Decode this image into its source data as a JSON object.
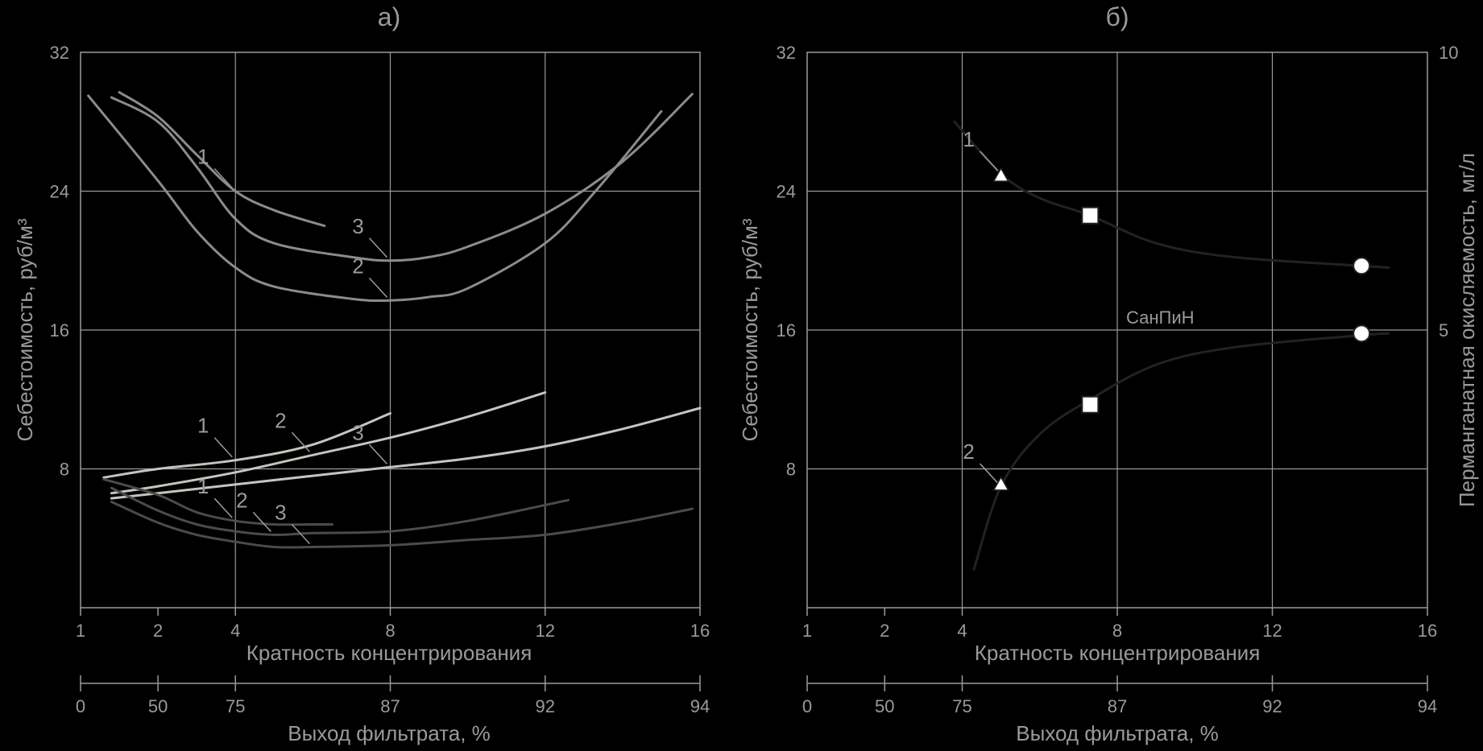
{
  "chart_data": [
    {
      "id": "a",
      "type": "line",
      "title": "а)",
      "xlabel": "Кратность концентрирования",
      "x2label": "Выход фильтрата, %",
      "ylabel": "Себестоимость, руб/м³",
      "x_ticks": [
        1,
        2,
        4,
        8,
        12,
        16
      ],
      "x2_ticks": [
        0,
        50,
        75,
        87,
        92,
        94
      ],
      "y_ticks": [
        8,
        16,
        24,
        32
      ],
      "ylim": [
        0,
        32
      ],
      "grid": true,
      "series": [
        {
          "name": "1",
          "color": "#8a8d88",
          "points": [
            [
              1.5,
              29.7
            ],
            [
              2,
              28.3
            ],
            [
              3,
              26.1
            ],
            [
              4,
              24.0
            ],
            [
              5,
              22.9
            ],
            [
              6.3,
              22.0
            ]
          ],
          "label": "1"
        },
        {
          "name": "2",
          "color": "#8a8d88",
          "points": [
            [
              1.1,
              29.5
            ],
            [
              2,
              24.6
            ],
            [
              3,
              21.7
            ],
            [
              4,
              19.6
            ],
            [
              5,
              18.5
            ],
            [
              7,
              17.8
            ],
            [
              8,
              17.7
            ],
            [
              9,
              17.9
            ],
            [
              10,
              18.4
            ],
            [
              12,
              21.0
            ],
            [
              13.3,
              24.0
            ],
            [
              15,
              28.6
            ]
          ],
          "label": "2"
        },
        {
          "name": "3",
          "color": "#8a8d88",
          "points": [
            [
              1.4,
              29.4
            ],
            [
              2,
              28.0
            ],
            [
              3,
              25.4
            ],
            [
              4,
              22.4
            ],
            [
              5,
              21.0
            ],
            [
              7,
              20.2
            ],
            [
              8,
              20.0
            ],
            [
              9,
              20.2
            ],
            [
              10,
              20.8
            ],
            [
              12,
              22.7
            ],
            [
              14,
              25.7
            ],
            [
              15.8,
              29.6
            ]
          ],
          "label": "3"
        },
        {
          "name": "1",
          "color": "#c4c6be",
          "points": [
            [
              1.3,
              7.5
            ],
            [
              2,
              8.0
            ],
            [
              4,
              8.5
            ],
            [
              6,
              9.4
            ],
            [
              8,
              11.2
            ]
          ],
          "label": "1"
        },
        {
          "name": "2",
          "color": "#c4c6be",
          "points": [
            [
              1.4,
              6.6
            ],
            [
              2,
              7.0
            ],
            [
              4,
              7.8
            ],
            [
              6,
              8.8
            ],
            [
              8,
              9.8
            ],
            [
              10,
              11.0
            ],
            [
              12,
              12.4
            ]
          ],
          "label": "2"
        },
        {
          "name": "3",
          "color": "#c4c6be",
          "points": [
            [
              1.4,
              6.3
            ],
            [
              2,
              6.6
            ],
            [
              4,
              7.1
            ],
            [
              6,
              7.6
            ],
            [
              8,
              8.1
            ],
            [
              10,
              8.6
            ],
            [
              12,
              9.3
            ],
            [
              14,
              10.3
            ],
            [
              16,
              11.5
            ]
          ],
          "label": "3"
        },
        {
          "name": "1",
          "color": "#4b4b4b",
          "points": [
            [
              1.3,
              7.4
            ],
            [
              2,
              6.5
            ],
            [
              3,
              5.5
            ],
            [
              4,
              5.0
            ],
            [
              5,
              4.8
            ],
            [
              6,
              4.8
            ],
            [
              6.5,
              4.8
            ]
          ],
          "label": "1"
        },
        {
          "name": "2",
          "color": "#4b4b4b",
          "points": [
            [
              1.4,
              6.9
            ],
            [
              2,
              5.6
            ],
            [
              3,
              4.8
            ],
            [
              4,
              4.4
            ],
            [
              5,
              4.2
            ],
            [
              6,
              4.3
            ],
            [
              8,
              4.4
            ],
            [
              10,
              5.0
            ],
            [
              12.6,
              6.2
            ]
          ],
          "label": "2"
        },
        {
          "name": "3",
          "color": "#4b4b4b",
          "points": [
            [
              1.4,
              6.1
            ],
            [
              2,
              4.9
            ],
            [
              3,
              4.2
            ],
            [
              4,
              3.8
            ],
            [
              5,
              3.5
            ],
            [
              6,
              3.5
            ],
            [
              8,
              3.6
            ],
            [
              10,
              3.9
            ],
            [
              12,
              4.2
            ],
            [
              14,
              4.9
            ],
            [
              15.8,
              5.7
            ]
          ],
          "label": "3"
        }
      ]
    },
    {
      "id": "b",
      "type": "line",
      "title": "б)",
      "xlabel": "Кратность концентрирования",
      "x2label": "Выход фильтрата, %",
      "ylabel": "Себестоимость, руб/м³",
      "y2label": "Перманганатная окисляемость, мг/л",
      "x_ticks": [
        1,
        2,
        4,
        8,
        12,
        16
      ],
      "x2_ticks": [
        0,
        50,
        75,
        87,
        92,
        94
      ],
      "y_ticks": [
        8,
        16,
        24,
        32
      ],
      "y2_ticks": [
        5,
        10
      ],
      "ylim": [
        0,
        32
      ],
      "grid": true,
      "annotation": "СанПиН",
      "series": [
        {
          "name": "1",
          "color": "#222222",
          "points": [
            [
              3.8,
              28.0
            ],
            [
              5,
              25.0
            ],
            [
              6,
              23.6
            ],
            [
              7.3,
              22.6
            ],
            [
              9,
              21.0
            ],
            [
              11,
              20.2
            ],
            [
              14.3,
              19.7
            ],
            [
              15,
              19.6
            ]
          ],
          "markers": [
            {
              "x": 5,
              "y": 24.9,
              "shape": "triangle"
            },
            {
              "x": 7.3,
              "y": 22.6,
              "shape": "square"
            },
            {
              "x": 14.3,
              "y": 19.7,
              "shape": "circle"
            }
          ],
          "label": "1"
        },
        {
          "name": "2",
          "color": "#222222",
          "points": [
            [
              4.3,
              2.2
            ],
            [
              5,
              7.0
            ],
            [
              6,
              10.0
            ],
            [
              7.3,
              12.0
            ],
            [
              9,
              14.0
            ],
            [
              11,
              15.0
            ],
            [
              14.3,
              15.7
            ],
            [
              15,
              15.8
            ]
          ],
          "markers": [
            {
              "x": 5,
              "y": 7.1,
              "shape": "triangle"
            },
            {
              "x": 7.3,
              "y": 11.7,
              "shape": "square"
            },
            {
              "x": 14.3,
              "y": 15.8,
              "shape": "circle"
            }
          ],
          "label": "2"
        }
      ]
    }
  ]
}
